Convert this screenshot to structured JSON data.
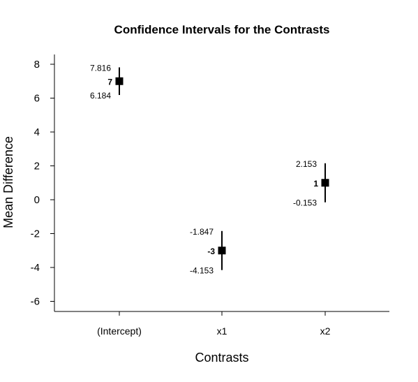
{
  "chart_data": {
    "type": "scatter",
    "title": "Confidence Intervals for the Contrasts",
    "xlabel": "Contrasts",
    "ylabel": "Mean Difference",
    "categories": [
      "(Intercept)",
      "x1",
      "x2"
    ],
    "estimates": [
      7,
      -3,
      1
    ],
    "estimate_labels": [
      "7",
      "-3",
      "1"
    ],
    "upper": [
      7.816,
      -1.847,
      2.153
    ],
    "upper_labels": [
      "7.816",
      "-1.847",
      "2.153"
    ],
    "lower": [
      6.184,
      -4.153,
      -0.153
    ],
    "lower_labels": [
      "6.184",
      "-4.153",
      "-0.153"
    ],
    "yticks": [
      8,
      6,
      4,
      2,
      0,
      -2,
      -4,
      -6
    ],
    "ytick_labels": [
      "8",
      "6",
      "4",
      "2",
      "0",
      "-2",
      "-4",
      "-6"
    ],
    "ylim": [
      -6.7,
      8.7
    ],
    "grid": false,
    "legend": "none",
    "marker": "square",
    "color": "#000000"
  }
}
